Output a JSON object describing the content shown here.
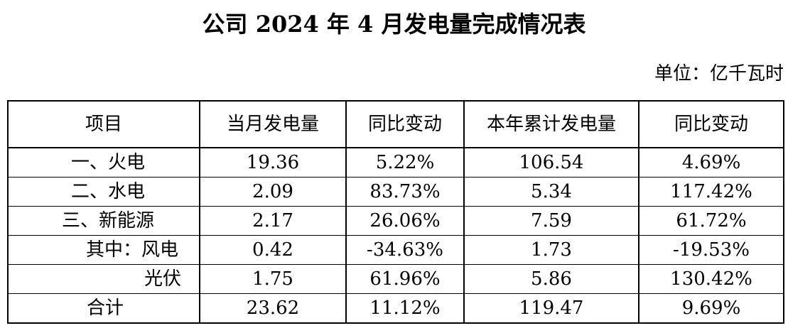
{
  "title": "公司 2024 年 4 月发电量完成情况表",
  "unit_label": "单位：亿千瓦时",
  "headers": [
    "项目",
    "当月发电量",
    "同比变动",
    "本年累计发电量",
    "同比变动"
  ],
  "rows": [
    {
      "name": "一、火电",
      "month": "19.36",
      "month_yoy": "5.22%",
      "ytd": "106.54",
      "ytd_yoy": "4.69%"
    },
    {
      "name": "二、水电",
      "month": "2.09",
      "month_yoy": "83.73%",
      "ytd": "5.34",
      "ytd_yoy": "117.42%"
    },
    {
      "name": "三、新能源",
      "month": "2.17",
      "month_yoy": "26.06%",
      "ytd": "7.59",
      "ytd_yoy": "61.72%"
    },
    {
      "name": "其中：风电",
      "month": "0.42",
      "month_yoy": "-34.63%",
      "ytd": "1.73",
      "ytd_yoy": "-19.53%"
    },
    {
      "name": "光伏",
      "month": "1.75",
      "month_yoy": "61.96%",
      "ytd": "5.86",
      "ytd_yoy": "130.42%"
    },
    {
      "name": "合计",
      "month": "23.62",
      "month_yoy": "11.12%",
      "ytd": "119.47",
      "ytd_yoy": "9.69%"
    }
  ]
}
